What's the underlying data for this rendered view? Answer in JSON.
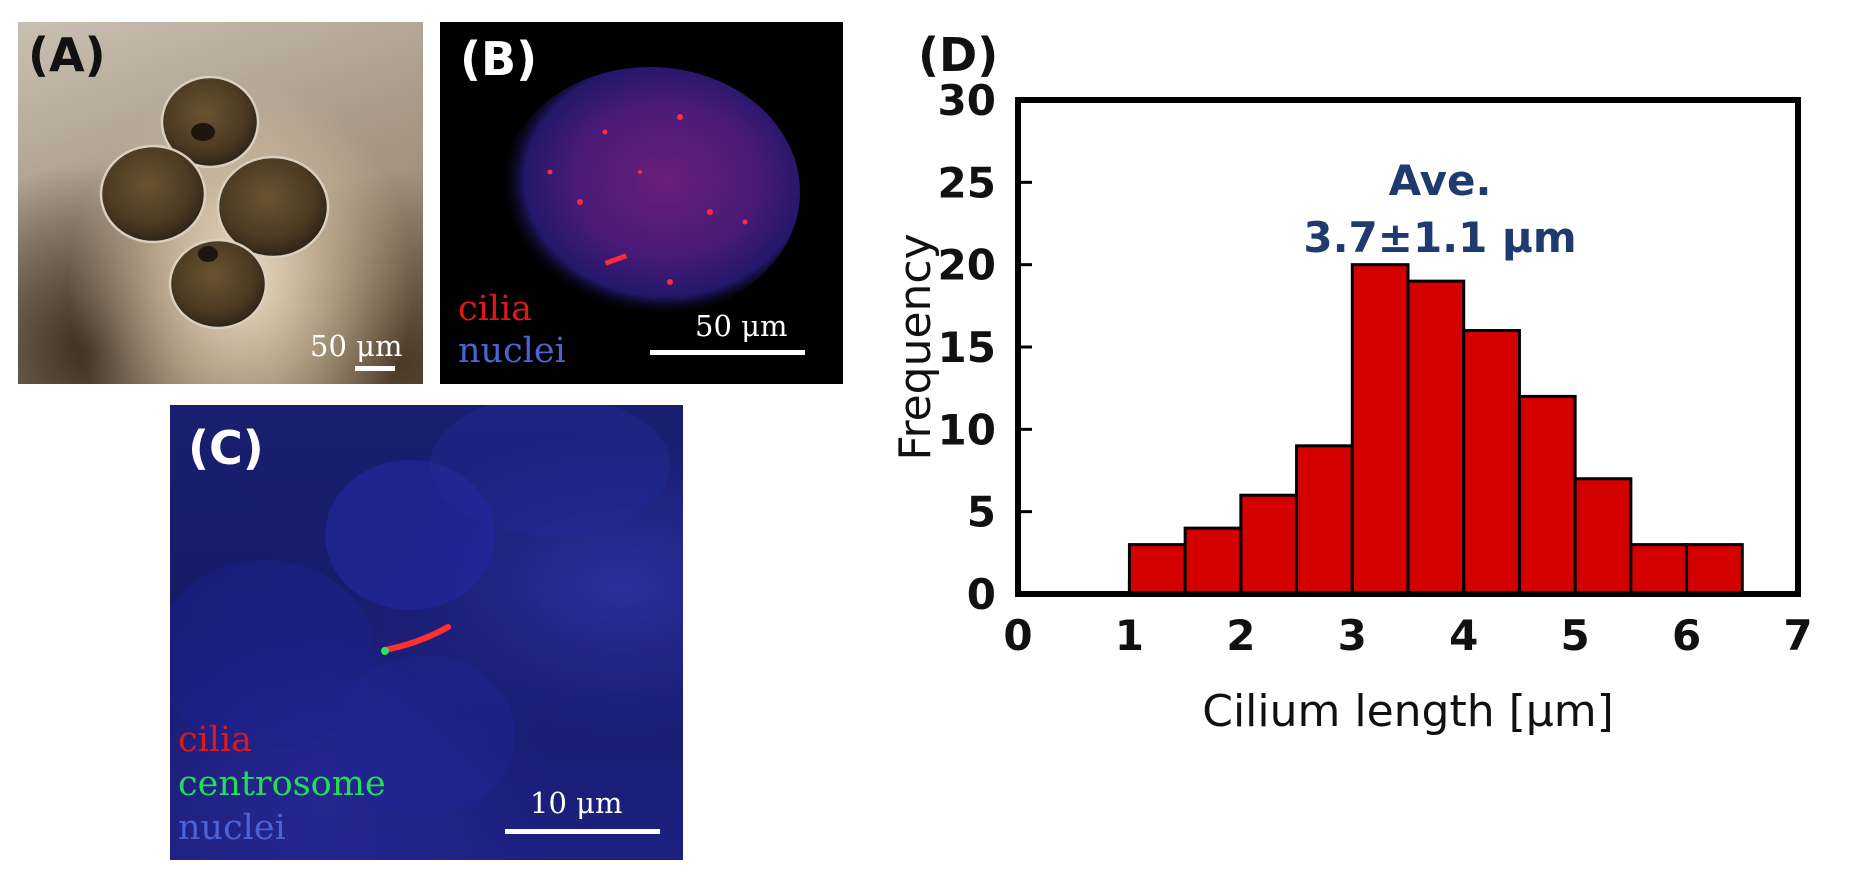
{
  "panels": {
    "a": {
      "label": "(A)",
      "scale_text": "50 μm"
    },
    "b": {
      "label": "(B)",
      "scale_text": "50 μm",
      "legend": [
        "cilia",
        "nuclei"
      ]
    },
    "c": {
      "label": "(C)",
      "scale_text": "10 μm",
      "legend": [
        "cilia",
        "centrosome",
        "nuclei"
      ]
    },
    "d": {
      "label": "(D)"
    }
  },
  "colors": {
    "cilia": "#e01818",
    "centrosome": "#22dd55",
    "nuclei": "#4a63d6",
    "bar_fill": "#d40000",
    "annotation": "#1f3a6e"
  },
  "chart_data": {
    "type": "bar",
    "xlabel": "Cilium length [μm]",
    "ylabel": "Frequency",
    "xlim": [
      0,
      7
    ],
    "ylim": [
      0,
      30
    ],
    "xticks": [
      "0",
      "1",
      "2",
      "3",
      "4",
      "5",
      "6",
      "7"
    ],
    "yticks": [
      "0",
      "5",
      "10",
      "15",
      "20",
      "25",
      "30"
    ],
    "bins": [
      {
        "start": 1.0,
        "end": 1.5,
        "value": 3
      },
      {
        "start": 1.5,
        "end": 2.0,
        "value": 4
      },
      {
        "start": 2.0,
        "end": 2.5,
        "value": 6
      },
      {
        "start": 2.5,
        "end": 3.0,
        "value": 9
      },
      {
        "start": 3.0,
        "end": 3.5,
        "value": 20
      },
      {
        "start": 3.5,
        "end": 4.0,
        "value": 19
      },
      {
        "start": 4.0,
        "end": 4.5,
        "value": 16
      },
      {
        "start": 4.5,
        "end": 5.0,
        "value": 12
      },
      {
        "start": 5.0,
        "end": 5.5,
        "value": 7
      },
      {
        "start": 5.5,
        "end": 6.0,
        "value": 3
      },
      {
        "start": 6.0,
        "end": 6.5,
        "value": 3
      }
    ],
    "annotation": [
      "Ave.",
      "3.7±1.1 μm"
    ],
    "grid": false,
    "legend": false
  }
}
